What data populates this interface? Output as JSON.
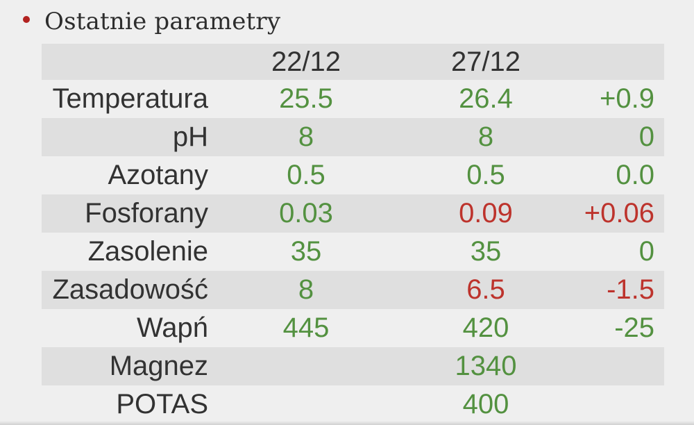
{
  "title": {
    "text": "Ostatnie parametry"
  },
  "colors": {
    "green": "#539140",
    "red": "#bd332c",
    "dark": "#323232",
    "bullet": "#b22220",
    "row_alt_bg": "#dfdfdf",
    "page_bg": "#efefef"
  },
  "table": {
    "header": {
      "label": "",
      "col1": "22/12",
      "col2": "27/12",
      "col3": ""
    },
    "rows": [
      {
        "label": "Temperatura",
        "cells": [
          {
            "t": "25.5",
            "c": "green"
          },
          {
            "t": "26.4",
            "c": "green"
          },
          {
            "t": "+0.9",
            "c": "green"
          }
        ]
      },
      {
        "label": "pH",
        "cells": [
          {
            "t": "8",
            "c": "green"
          },
          {
            "t": "8",
            "c": "green"
          },
          {
            "t": "0",
            "c": "green"
          }
        ]
      },
      {
        "label": "Azotany",
        "cells": [
          {
            "t": "0.5",
            "c": "green"
          },
          {
            "t": "0.5",
            "c": "green"
          },
          {
            "t": "0.0",
            "c": "green"
          }
        ]
      },
      {
        "label": "Fosforany",
        "cells": [
          {
            "t": "0.03",
            "c": "green"
          },
          {
            "t": "0.09",
            "c": "red"
          },
          {
            "t": "+0.06",
            "c": "red"
          }
        ]
      },
      {
        "label": "Zasolenie",
        "cells": [
          {
            "t": "35",
            "c": "green"
          },
          {
            "t": "35",
            "c": "green"
          },
          {
            "t": "0",
            "c": "green"
          }
        ]
      },
      {
        "label": "Zasadowość",
        "cells": [
          {
            "t": "8",
            "c": "green"
          },
          {
            "t": "6.5",
            "c": "red"
          },
          {
            "t": "-1.5",
            "c": "red"
          }
        ]
      },
      {
        "label": "Wapń",
        "cells": [
          {
            "t": "445",
            "c": "green"
          },
          {
            "t": "420",
            "c": "green"
          },
          {
            "t": "-25",
            "c": "green"
          }
        ]
      },
      {
        "label": "Magnez",
        "cells": [
          {
            "t": "",
            "c": "green"
          },
          {
            "t": "1340",
            "c": "green"
          },
          {
            "t": "",
            "c": "green"
          }
        ]
      },
      {
        "label": "POTAS",
        "cells": [
          {
            "t": "",
            "c": "green"
          },
          {
            "t": "400",
            "c": "green"
          },
          {
            "t": "",
            "c": "green"
          }
        ]
      }
    ]
  },
  "chart_data": {
    "type": "table",
    "title": "Ostatnie parametry",
    "columns": [
      "",
      "22/12",
      "27/12",
      ""
    ],
    "rows": [
      [
        "Temperatura",
        25.5,
        26.4,
        "+0.9"
      ],
      [
        "pH",
        8,
        8,
        0
      ],
      [
        "Azotany",
        0.5,
        0.5,
        "0.0"
      ],
      [
        "Fosforany",
        0.03,
        0.09,
        "+0.06"
      ],
      [
        "Zasolenie",
        35,
        35,
        0
      ],
      [
        "Zasadowość",
        8,
        6.5,
        -1.5
      ],
      [
        "Wapń",
        445,
        420,
        -25
      ],
      [
        "Magnez",
        null,
        1340,
        null
      ],
      [
        "POTAS",
        null,
        400,
        null
      ]
    ],
    "value_color_rule": "green = ok, red = worsened value",
    "legend_position": "none",
    "grid": "alternating-row-shading"
  }
}
